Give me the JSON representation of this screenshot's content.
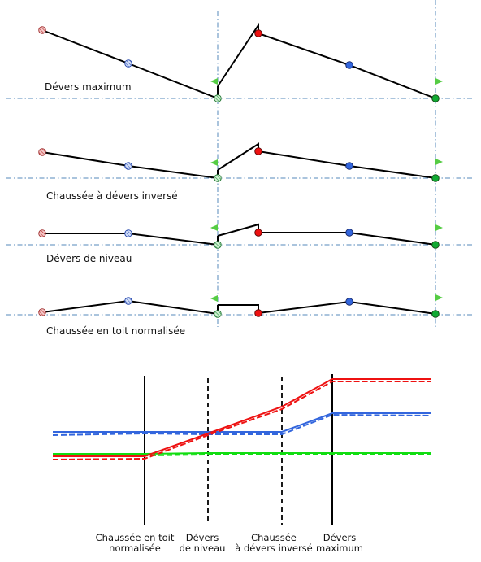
{
  "profiles": [
    {
      "id": "devers-maximum",
      "label": "Dévers maximum"
    },
    {
      "id": "chaussee-devers-inverse",
      "label": "Chaussée à dévers inversé"
    },
    {
      "id": "devers-niveau",
      "label": "Dévers de niveau"
    },
    {
      "id": "chaussee-toit-normalisee",
      "label": "Chaussée en toit normalisée"
    }
  ],
  "transition_chart": {
    "breakpoints": [
      {
        "line1": "Chaussée en toit",
        "line2": "normalisée",
        "style": "solid"
      },
      {
        "line1": "Dévers",
        "line2": "de niveau",
        "style": "dashed"
      },
      {
        "line1": "Chaussée",
        "line2": "à dévers inversé",
        "style": "dashed"
      },
      {
        "line1": "Dévers",
        "line2": "maximum",
        "style": "solid"
      }
    ],
    "series_colors": {
      "red": "#ee1111",
      "blue": "#3366dd",
      "green": "#11dd11"
    }
  },
  "colors": {
    "profile_line": "#000000",
    "reference_line": "#5588bb",
    "point_red_hatched": "#e89a9a",
    "point_blue_hatched": "#a8c0ee",
    "point_green_hatched": "#9ad09a",
    "point_red": "#ee1111",
    "point_blue": "#3366dd",
    "point_green": "#11aa33",
    "flag": "#55cc44"
  }
}
